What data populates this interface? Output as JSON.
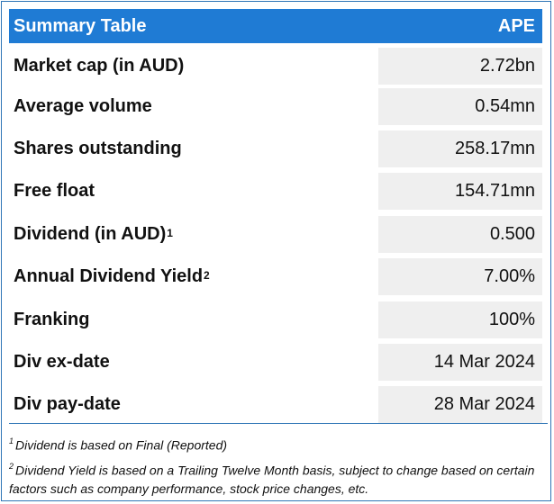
{
  "table": {
    "title": "Summary Table",
    "ticker": "APE",
    "rows": [
      {
        "label": "Market cap (in AUD)",
        "sup": "",
        "value": "2.72bn"
      },
      {
        "label": "Average volume",
        "sup": "",
        "value": "0.54mn"
      },
      {
        "label": "Shares outstanding",
        "sup": "",
        "value": "258.17mn"
      },
      {
        "label": "Free float",
        "sup": "",
        "value": "154.71mn"
      },
      {
        "label": "Dividend (in AUD)",
        "sup": "1",
        "value": "0.500"
      },
      {
        "label": "Annual Dividend Yield",
        "sup": "2",
        "value": "7.00%"
      },
      {
        "label": "Franking",
        "sup": "",
        "value": "100%"
      },
      {
        "label": "Div ex-date",
        "sup": "",
        "value": "14 Mar 2024"
      },
      {
        "label": "Div pay-date",
        "sup": "",
        "value": "28 Mar 2024"
      }
    ]
  },
  "footnotes": [
    {
      "mark": "1",
      "text": "Dividend is based on Final (Reported)"
    },
    {
      "mark": "2",
      "text": "Dividend Yield is based on a Trailing Twelve Month basis, subject to change based on certain factors such as company performance, stock price changes, etc."
    }
  ],
  "colors": {
    "header_bg": "#1F7BD4",
    "value_bg": "#EFEFEF",
    "border": "#2E75B6"
  }
}
